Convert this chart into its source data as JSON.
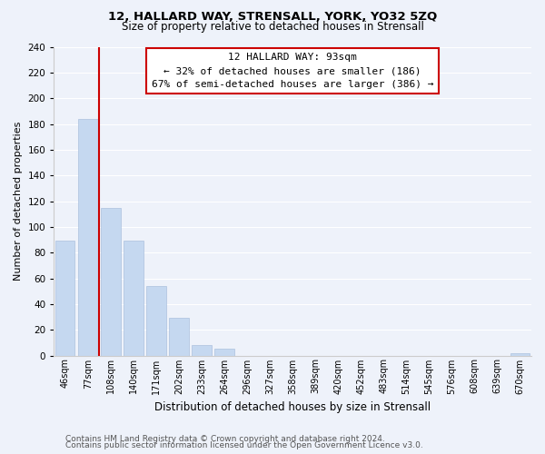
{
  "title": "12, HALLARD WAY, STRENSALL, YORK, YO32 5ZQ",
  "subtitle": "Size of property relative to detached houses in Strensall",
  "xlabel": "Distribution of detached houses by size in Strensall",
  "ylabel": "Number of detached properties",
  "bin_labels": [
    "46sqm",
    "77sqm",
    "108sqm",
    "140sqm",
    "171sqm",
    "202sqm",
    "233sqm",
    "264sqm",
    "296sqm",
    "327sqm",
    "358sqm",
    "389sqm",
    "420sqm",
    "452sqm",
    "483sqm",
    "514sqm",
    "545sqm",
    "576sqm",
    "608sqm",
    "639sqm",
    "670sqm"
  ],
  "bar_values": [
    89,
    184,
    115,
    89,
    54,
    29,
    8,
    5,
    0,
    0,
    0,
    0,
    0,
    0,
    0,
    0,
    0,
    0,
    0,
    0,
    2
  ],
  "bar_color": "#c5d8f0",
  "bar_edge_color": "#a0b8d8",
  "marker_line_color": "#cc0000",
  "marker_bin_index": 2,
  "annotation_title": "12 HALLARD WAY: 93sqm",
  "annotation_line1": "← 32% of detached houses are smaller (186)",
  "annotation_line2": "67% of semi-detached houses are larger (386) →",
  "annotation_box_color": "#ffffff",
  "annotation_box_edge": "#cc0000",
  "ylim": [
    0,
    240
  ],
  "yticks": [
    0,
    20,
    40,
    60,
    80,
    100,
    120,
    140,
    160,
    180,
    200,
    220,
    240
  ],
  "footer1": "Contains HM Land Registry data © Crown copyright and database right 2024.",
  "footer2": "Contains public sector information licensed under the Open Government Licence v3.0.",
  "bg_color": "#eef2fa",
  "plot_bg_color": "#eef2fa",
  "grid_color": "#ffffff",
  "title_fontsize": 9.5,
  "subtitle_fontsize": 8.5,
  "ylabel_fontsize": 8,
  "xlabel_fontsize": 8.5,
  "footer_fontsize": 6.5,
  "annot_fontsize": 8
}
